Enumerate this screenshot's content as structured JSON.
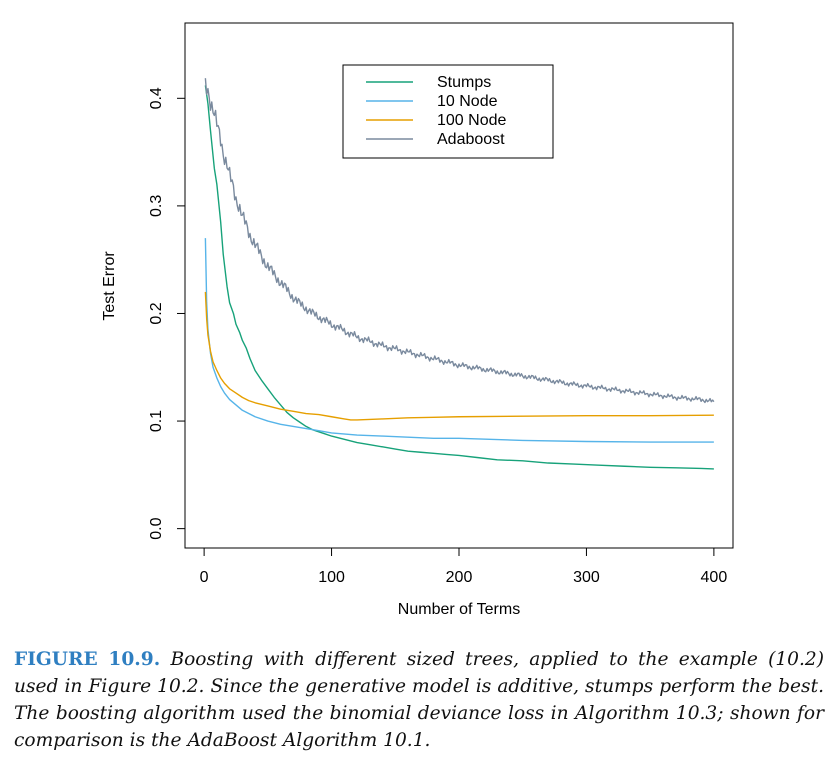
{
  "chart_data": {
    "type": "line",
    "xlabel": "Number of Terms",
    "ylabel": "Test Error",
    "xlim": [
      -15,
      415
    ],
    "ylim": [
      -0.018,
      0.47
    ],
    "xticks": [
      0,
      100,
      200,
      300,
      400
    ],
    "xtick_labels": [
      "0",
      "100",
      "200",
      "300",
      "400"
    ],
    "yticks": [
      0.0,
      0.1,
      0.2,
      0.3,
      0.4
    ],
    "ytick_labels": [
      "0.0",
      "0.1",
      "0.2",
      "0.3",
      "0.4"
    ],
    "grid": false,
    "legend_position": "top-center",
    "series": [
      {
        "name": "Stumps",
        "color": "#17a27a",
        "x": [
          1,
          3,
          5,
          8,
          10,
          13,
          15,
          18,
          20,
          23,
          25,
          28,
          30,
          33,
          36,
          40,
          45,
          50,
          55,
          60,
          65,
          70,
          75,
          80,
          85,
          90,
          95,
          100,
          110,
          120,
          130,
          140,
          150,
          160,
          170,
          180,
          190,
          200,
          215,
          230,
          250,
          270,
          290,
          310,
          330,
          350,
          370,
          390,
          400
        ],
        "y": [
          0.412,
          0.395,
          0.37,
          0.335,
          0.32,
          0.285,
          0.255,
          0.225,
          0.21,
          0.2,
          0.19,
          0.182,
          0.175,
          0.168,
          0.158,
          0.147,
          0.138,
          0.13,
          0.122,
          0.115,
          0.108,
          0.103,
          0.099,
          0.095,
          0.092,
          0.09,
          0.088,
          0.086,
          0.083,
          0.08,
          0.078,
          0.076,
          0.074,
          0.072,
          0.071,
          0.07,
          0.069,
          0.068,
          0.066,
          0.064,
          0.063,
          0.061,
          0.06,
          0.059,
          0.058,
          0.057,
          0.0565,
          0.056,
          0.0555
        ]
      },
      {
        "name": "10 Node",
        "color": "#56b4e9",
        "x": [
          1,
          2,
          3,
          5,
          7,
          10,
          13,
          16,
          20,
          25,
          30,
          35,
          40,
          50,
          60,
          70,
          80,
          90,
          100,
          120,
          140,
          160,
          180,
          200,
          250,
          300,
          350,
          400
        ],
        "y": [
          0.27,
          0.21,
          0.185,
          0.163,
          0.15,
          0.14,
          0.132,
          0.126,
          0.12,
          0.115,
          0.11,
          0.107,
          0.104,
          0.1,
          0.097,
          0.095,
          0.093,
          0.091,
          0.089,
          0.087,
          0.086,
          0.085,
          0.084,
          0.084,
          0.082,
          0.081,
          0.0805,
          0.0805
        ]
      },
      {
        "name": "100 Node",
        "color": "#e69f00",
        "x": [
          1,
          2,
          3,
          5,
          7,
          10,
          13,
          16,
          20,
          25,
          30,
          35,
          40,
          50,
          60,
          70,
          80,
          90,
          100,
          110,
          115,
          120,
          140,
          160,
          180,
          200,
          250,
          300,
          350,
          400
        ],
        "y": [
          0.22,
          0.195,
          0.18,
          0.165,
          0.155,
          0.147,
          0.14,
          0.135,
          0.13,
          0.126,
          0.122,
          0.119,
          0.117,
          0.114,
          0.111,
          0.109,
          0.107,
          0.106,
          0.104,
          0.102,
          0.101,
          0.101,
          0.102,
          0.103,
          0.1035,
          0.104,
          0.1045,
          0.105,
          0.105,
          0.1055
        ]
      },
      {
        "name": "Adaboost",
        "color": "#7a8a9e",
        "x": [
          1,
          3,
          5,
          8,
          10,
          13,
          15,
          18,
          20,
          23,
          25,
          28,
          30,
          33,
          36,
          40,
          45,
          50,
          55,
          60,
          65,
          70,
          75,
          80,
          85,
          90,
          95,
          100,
          110,
          120,
          130,
          140,
          150,
          160,
          170,
          180,
          190,
          200,
          215,
          230,
          250,
          270,
          290,
          310,
          330,
          350,
          370,
          390,
          400
        ],
        "y": [
          0.412,
          0.408,
          0.398,
          0.385,
          0.375,
          0.362,
          0.35,
          0.338,
          0.328,
          0.316,
          0.307,
          0.298,
          0.29,
          0.282,
          0.273,
          0.264,
          0.253,
          0.244,
          0.236,
          0.229,
          0.222,
          0.215,
          0.209,
          0.205,
          0.2,
          0.197,
          0.193,
          0.19,
          0.184,
          0.178,
          0.174,
          0.17,
          0.167,
          0.164,
          0.161,
          0.158,
          0.155,
          0.152,
          0.149,
          0.146,
          0.142,
          0.138,
          0.134,
          0.131,
          0.128,
          0.125,
          0.122,
          0.12,
          0.118
        ]
      }
    ]
  },
  "caption": {
    "label": "FIGURE 10.9.",
    "text": "Boosting with different sized trees, applied to the example (10.2) used in Figure 10.2. Since the generative model is additive, stumps perform the best. The boosting algorithm used the binomial deviance loss in Algorithm 10.3; shown for comparison is the AdaBoost Algorithm 10.1."
  }
}
